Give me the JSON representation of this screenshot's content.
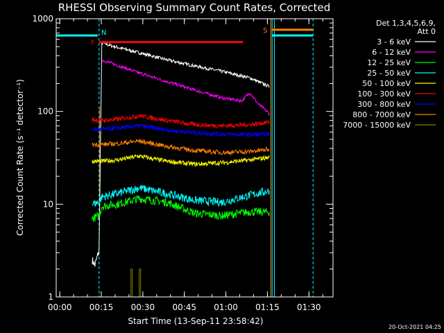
{
  "title": "RHESSI Observing Summary Count Rates, Corrected",
  "timestamp": "20-Oct-2021 04:25",
  "chart_data": {
    "type": "line",
    "title": "RHESSI Observing Summary Count Rates, Corrected",
    "xlabel": "Start Time (13-Sep-11 23:58:42)",
    "ylabel": "Corrected Count Rate (s⁻¹ detector⁻¹)",
    "y_scale": "log",
    "ylim": [
      1,
      1000
    ],
    "xlim": [
      0,
      100
    ],
    "x_units": "minutes from start",
    "x_ticks": [
      {
        "v": 1.3,
        "label": "00:00"
      },
      {
        "v": 16.3,
        "label": "00:15"
      },
      {
        "v": 31.3,
        "label": "00:30"
      },
      {
        "v": 46.3,
        "label": "00:45"
      },
      {
        "v": 61.3,
        "label": "01:00"
      },
      {
        "v": 76.3,
        "label": "01:15"
      },
      {
        "v": 91.3,
        "label": "01:30"
      }
    ],
    "y_ticks": [
      {
        "v": 1,
        "label": "1"
      },
      {
        "v": 10,
        "label": "10"
      },
      {
        "v": 100,
        "label": "100"
      },
      {
        "v": 1000,
        "label": "1000"
      }
    ],
    "legend_header": [
      "Det 1,3,4,5,6,9,",
      "Att 0"
    ],
    "legend_position": "right",
    "series": [
      {
        "name": "3 - 6 keV",
        "color": "#ffffff",
        "x": [
          13,
          14,
          15.5,
          16.5,
          20,
          30,
          40,
          50,
          60,
          70,
          77
        ],
        "y": [
          2.5,
          2.2,
          3.2,
          550,
          510,
          430,
          360,
          310,
          270,
          230,
          185
        ]
      },
      {
        "name": "6 - 12 keV",
        "color": "#ff00ff",
        "x": [
          16.5,
          20,
          30,
          40,
          50,
          60,
          67,
          70,
          73,
          77
        ],
        "y": [
          360,
          330,
          260,
          210,
          170,
          140,
          130,
          160,
          120,
          95
        ]
      },
      {
        "name": "12 - 25 keV",
        "color": "#00ff00",
        "x": [
          13,
          15.5,
          16.5,
          22,
          30,
          40,
          50,
          60,
          70,
          77
        ],
        "y": [
          7,
          7.5,
          9.5,
          10,
          11.5,
          10.5,
          8,
          7.5,
          8.3,
          8.2
        ]
      },
      {
        "name": "25 - 50 keV",
        "color": "#00ffff",
        "x": [
          13,
          15.5,
          16.5,
          22,
          30,
          40,
          50,
          60,
          70,
          77
        ],
        "y": [
          10,
          10.5,
          12,
          13,
          15,
          13,
          11,
          10.5,
          12.5,
          14
        ]
      },
      {
        "name": "50 - 100 keV",
        "color": "#ffff00",
        "x": [
          13,
          16.5,
          22,
          30,
          40,
          50,
          60,
          70,
          77
        ],
        "y": [
          29,
          29,
          30,
          33,
          29,
          27,
          28,
          30,
          32
        ]
      },
      {
        "name": "100 - 300 keV",
        "color": "#ff0000",
        "x": [
          13,
          16.5,
          22,
          30,
          40,
          50,
          60,
          70,
          77
        ],
        "y": [
          82,
          80,
          82,
          90,
          80,
          72,
          70,
          72,
          77
        ]
      },
      {
        "name": "300 - 800 keV",
        "color": "#0000ff",
        "x": [
          13,
          16.5,
          22,
          30,
          40,
          50,
          60,
          70,
          77
        ],
        "y": [
          64,
          64,
          66,
          70,
          63,
          59,
          57,
          56,
          57
        ]
      },
      {
        "name": "800 - 7000 keV",
        "color": "#ff8000",
        "x": [
          13,
          16.5,
          22,
          30,
          40,
          50,
          60,
          70,
          77
        ],
        "y": [
          44,
          44,
          45,
          48,
          42,
          38,
          36,
          37,
          39
        ]
      },
      {
        "name": "7000 - 15000 keV",
        "color": "#808000",
        "x": [
          27,
          27,
          27.5,
          27.5,
          30,
          30,
          30.5,
          30.5
        ],
        "y": [
          1,
          2,
          2,
          1,
          1,
          2,
          2,
          1
        ]
      }
    ],
    "flag_lines": [
      {
        "label": "F",
        "color": "#ff0000",
        "x_start": 15.5,
        "x_end": 67.5,
        "y": 560
      },
      {
        "label": "S",
        "color": "#ff8000",
        "x_start": 77.8,
        "x_end": 92.8,
        "y": 760
      }
    ],
    "markers": [
      {
        "label": "N",
        "color": "#00ffff",
        "x": 15.5
      }
    ],
    "attenuator_segments": [
      {
        "x_start": 0,
        "x_end": 15,
        "y": 660
      },
      {
        "x_start": 78,
        "x_end": 92.8,
        "y": 660
      }
    ]
  }
}
